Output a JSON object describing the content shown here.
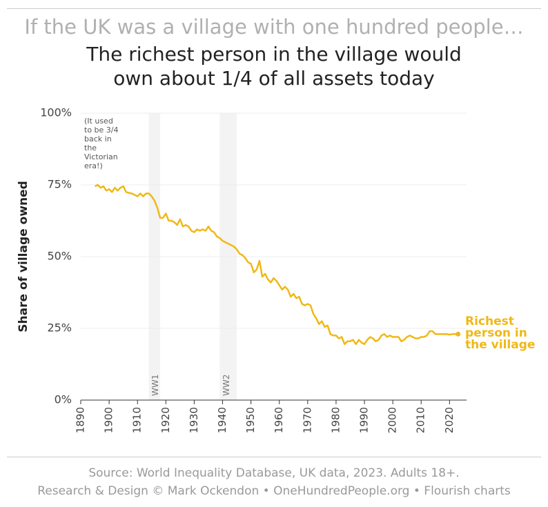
{
  "header": {
    "title": "If the UK was a village with one hundred people…",
    "subtitle": [
      "The richest person in the village would",
      "own about 1/4 of all assets today"
    ]
  },
  "chart_data": {
    "type": "line",
    "y_label": "Share of village owned",
    "annotation": [
      "(It used",
      "to be 3/4",
      "back in",
      "the",
      "Victorian",
      "era!)"
    ],
    "bands": [
      {
        "label": "WW1",
        "start": 1914,
        "end": 1918
      },
      {
        "label": "WW2",
        "start": 1939,
        "end": 1945
      }
    ],
    "xlim": [
      1890,
      2026
    ],
    "xticks": [
      1890,
      1900,
      1910,
      1920,
      1930,
      1940,
      1950,
      1960,
      1970,
      1980,
      1990,
      2000,
      2010,
      2020
    ],
    "ylim": [
      0,
      100
    ],
    "yticks": [
      {
        "value": 0,
        "label": "0%"
      },
      {
        "value": 25,
        "label": "25%"
      },
      {
        "value": 50,
        "label": "50%"
      },
      {
        "value": 75,
        "label": "75%"
      },
      {
        "value": 100,
        "label": "100%"
      }
    ],
    "grid": true,
    "x": [
      1895,
      1896,
      1897,
      1898,
      1899,
      1900,
      1901,
      1902,
      1903,
      1904,
      1905,
      1906,
      1907,
      1908,
      1909,
      1910,
      1911,
      1912,
      1913,
      1914,
      1915,
      1916,
      1917,
      1918,
      1919,
      1920,
      1921,
      1922,
      1923,
      1924,
      1925,
      1926,
      1927,
      1928,
      1929,
      1930,
      1931,
      1932,
      1933,
      1934,
      1935,
      1936,
      1937,
      1938,
      1939,
      1940,
      1941,
      1942,
      1943,
      1944,
      1945,
      1946,
      1947,
      1948,
      1949,
      1950,
      1951,
      1952,
      1953,
      1954,
      1955,
      1956,
      1957,
      1958,
      1959,
      1960,
      1961,
      1962,
      1963,
      1964,
      1965,
      1966,
      1967,
      1968,
      1969,
      1970,
      1971,
      1972,
      1973,
      1974,
      1975,
      1976,
      1977,
      1978,
      1979,
      1980,
      1981,
      1982,
      1983,
      1984,
      1985,
      1986,
      1987,
      1988,
      1989,
      1990,
      1991,
      1992,
      1993,
      1994,
      1995,
      1996,
      1997,
      1998,
      1999,
      2000,
      2001,
      2002,
      2003,
      2004,
      2005,
      2006,
      2007,
      2008,
      2009,
      2010,
      2011,
      2012,
      2013,
      2014,
      2015,
      2016,
      2017,
      2018,
      2019,
      2020,
      2021,
      2022,
      2023
    ],
    "series": [
      {
        "name": "Richest person in the village",
        "color": "#f0b814",
        "values": [
          74.5,
          75,
          74,
          74.5,
          73,
          73.5,
          72.5,
          74,
          73,
          74,
          74.5,
          72.5,
          72.2,
          72,
          71.5,
          71,
          72,
          71,
          72,
          72,
          71,
          69.5,
          67,
          63.5,
          63.5,
          65,
          62.5,
          62.5,
          62,
          61,
          63,
          60.5,
          61,
          60.5,
          59,
          58.5,
          59.5,
          59,
          59.5,
          59,
          60.5,
          59,
          58.5,
          57,
          56.5,
          55.5,
          55,
          54.5,
          54,
          53.5,
          52.5,
          51,
          50.5,
          49.5,
          48,
          47.5,
          44.5,
          45.5,
          48.5,
          43,
          44,
          42,
          41,
          42.5,
          41.5,
          40,
          38.5,
          39.5,
          38.5,
          36,
          37,
          35.5,
          36,
          33.5,
          33,
          33.5,
          33,
          30,
          28.5,
          26.5,
          27.5,
          25.5,
          26,
          23,
          22.5,
          22.5,
          21.5,
          22,
          19.5,
          20.5,
          20.5,
          21,
          19.5,
          21,
          20,
          19.5,
          21,
          22,
          21.5,
          20.5,
          21,
          22.5,
          23,
          22,
          22.5,
          22,
          22,
          22,
          20.5,
          21,
          22,
          22.5,
          22,
          21.5,
          21.5,
          22,
          22,
          22.5,
          24,
          24,
          23,
          23,
          23,
          23,
          23,
          22.8,
          23,
          23,
          23
        ]
      }
    ]
  },
  "footer": [
    "Source: World Inequality Database, UK data, 2023. Adults 18+.",
    "Research & Design © Mark Ockendon • OneHundredPeople.org • Flourish charts"
  ]
}
